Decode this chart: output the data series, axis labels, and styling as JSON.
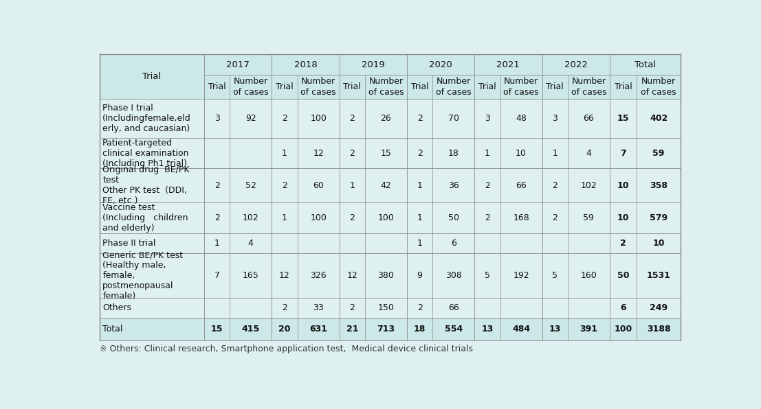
{
  "background_color": "#dff0f0",
  "header_bg": "#cce8e8",
  "footer": "※ Others: Clinical research, Smartphone application test,  Medical device clinical trials",
  "years": [
    "2017",
    "2018",
    "2019",
    "2020",
    "2021",
    "2022",
    "Total"
  ],
  "row_labels": [
    "Phase I trial\n(Includingfemale,eld\nerly, and caucasian)",
    "Patient-targeted\nclinical examination\n(Including Ph1 trial)",
    "Original drug  BE/PK\ntest\nOther PK test  (DDI,\nFE, etc.)",
    "Vaccine test\n(Including   children\nand elderly)",
    "Phase II trial",
    "Generic BE/PK test\n(Healthy male,\nfemale,\npostmenopausal\nfemale)",
    "Others",
    "Total"
  ],
  "data": [
    [
      "3",
      "92",
      "2",
      "100",
      "2",
      "26",
      "2",
      "70",
      "3",
      "48",
      "3",
      "66",
      "15",
      "402"
    ],
    [
      "",
      "",
      "1",
      "12",
      "2",
      "15",
      "2",
      "18",
      "1",
      "10",
      "1",
      "4",
      "7",
      "59"
    ],
    [
      "2",
      "52",
      "2",
      "60",
      "1",
      "42",
      "1",
      "36",
      "2",
      "66",
      "2",
      "102",
      "10",
      "358"
    ],
    [
      "2",
      "102",
      "1",
      "100",
      "2",
      "100",
      "1",
      "50",
      "2",
      "168",
      "2",
      "59",
      "10",
      "579"
    ],
    [
      "1",
      "4",
      "",
      "",
      "",
      "",
      "1",
      "6",
      "",
      "",
      "",
      "",
      "2",
      "10"
    ],
    [
      "7",
      "165",
      "12",
      "326",
      "12",
      "380",
      "9",
      "308",
      "5",
      "192",
      "5",
      "160",
      "50",
      "1531"
    ],
    [
      "",
      "",
      "2",
      "33",
      "2",
      "150",
      "2",
      "66",
      "",
      "",
      "",
      "",
      "6",
      "249"
    ],
    [
      "15",
      "415",
      "20",
      "631",
      "21",
      "713",
      "18",
      "554",
      "13",
      "484",
      "13",
      "391",
      "100",
      "3188"
    ]
  ],
  "font_size": 9.0,
  "header_font_size": 9.5,
  "line_color": "#888888",
  "text_color": "#111111",
  "footer_color": "#333333"
}
